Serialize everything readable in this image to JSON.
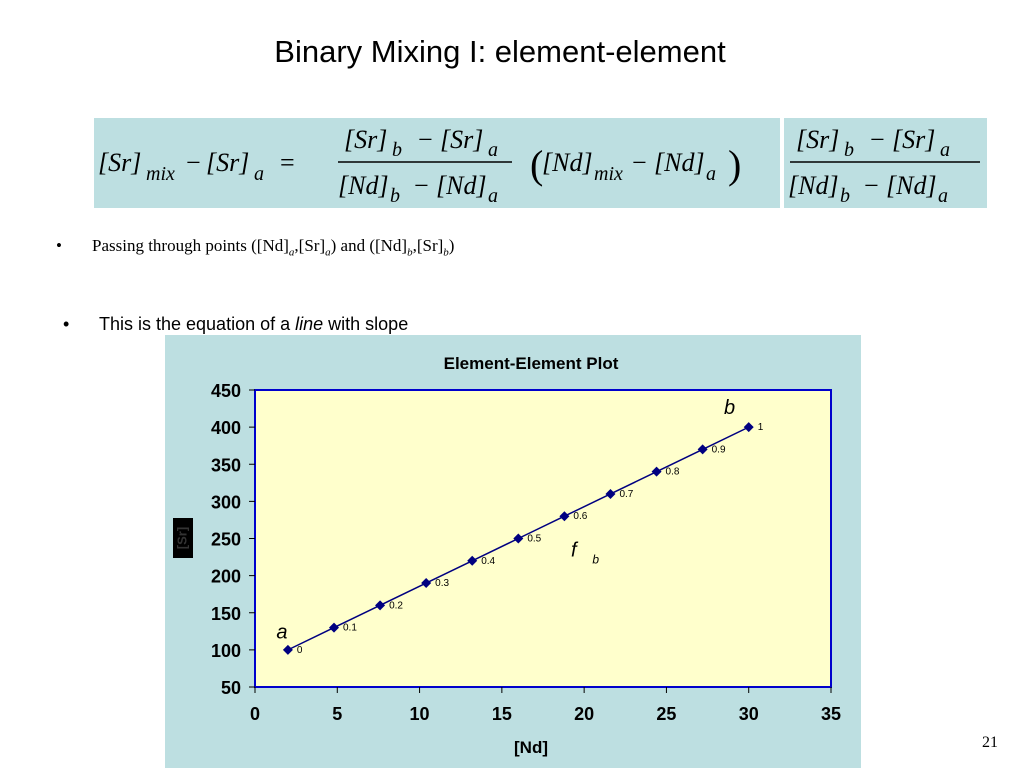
{
  "slide": {
    "title": "Binary Mixing I: element-element",
    "page_number": "21"
  },
  "equation": {
    "lhs_sr": "[Sr]",
    "lhs_mix": "mix",
    "minus": "−",
    "sr_a": "[Sr]",
    "sub_a": "a",
    "equals": "=",
    "sr_b": "[Sr]",
    "sub_b": "b",
    "nd_b": "[Nd]",
    "nd_a": "[Nd]",
    "nd_mix": "[Nd]",
    "paren_open": "(",
    "paren_close": ")"
  },
  "bullets": {
    "b1_dot": "•",
    "b1_prefix": "Passing through points ([Nd]",
    "b1_a1": "a",
    "b1_mid1": ",[Sr]",
    "b1_a2": "a",
    "b1_mid2": ") and ([Nd]",
    "b1_b1": "b",
    "b1_mid3": ",[Sr]",
    "b1_b2": "b",
    "b1_end": ")",
    "b2_dot": "•",
    "b2_prefix": "This is the equation of a ",
    "b2_italic": "line",
    "b2_suffix": " with slope"
  },
  "chart_data": {
    "type": "scatter",
    "title": "Element-Element Plot",
    "xlabel": "[Nd]",
    "ylabel": "[Sr]",
    "xlim": [
      0,
      35
    ],
    "ylim": [
      50,
      450
    ],
    "xticks": [
      0,
      5,
      10,
      15,
      20,
      25,
      30,
      35
    ],
    "yticks": [
      50,
      100,
      150,
      200,
      250,
      300,
      350,
      400,
      450
    ],
    "grid": false,
    "colors": {
      "plot_bg": "#ffffcc",
      "border": "#0000cc",
      "series": "#000080",
      "panel_bg": "#bddfe1"
    },
    "series": [
      {
        "x": [
          2,
          4.8,
          7.6,
          10.4,
          13.2,
          16,
          18.8,
          21.6,
          24.4,
          27.2,
          30
        ],
        "y": [
          100,
          130,
          160,
          190,
          220,
          250,
          280,
          310,
          340,
          370,
          400
        ],
        "labels": [
          "0",
          "0.1",
          "0.2",
          "0.3",
          "0.4",
          "0.5",
          "0.6",
          "0.7",
          "0.8",
          "0.9",
          "1"
        ]
      }
    ],
    "annotations": [
      {
        "text": "a",
        "x": 1.3,
        "y": 115
      },
      {
        "text": "b",
        "x": 28.5,
        "y": 418
      },
      {
        "text": "f",
        "x": 19.2,
        "y": 226
      },
      {
        "text": "b",
        "x": 20.5,
        "y": 216
      }
    ]
  }
}
